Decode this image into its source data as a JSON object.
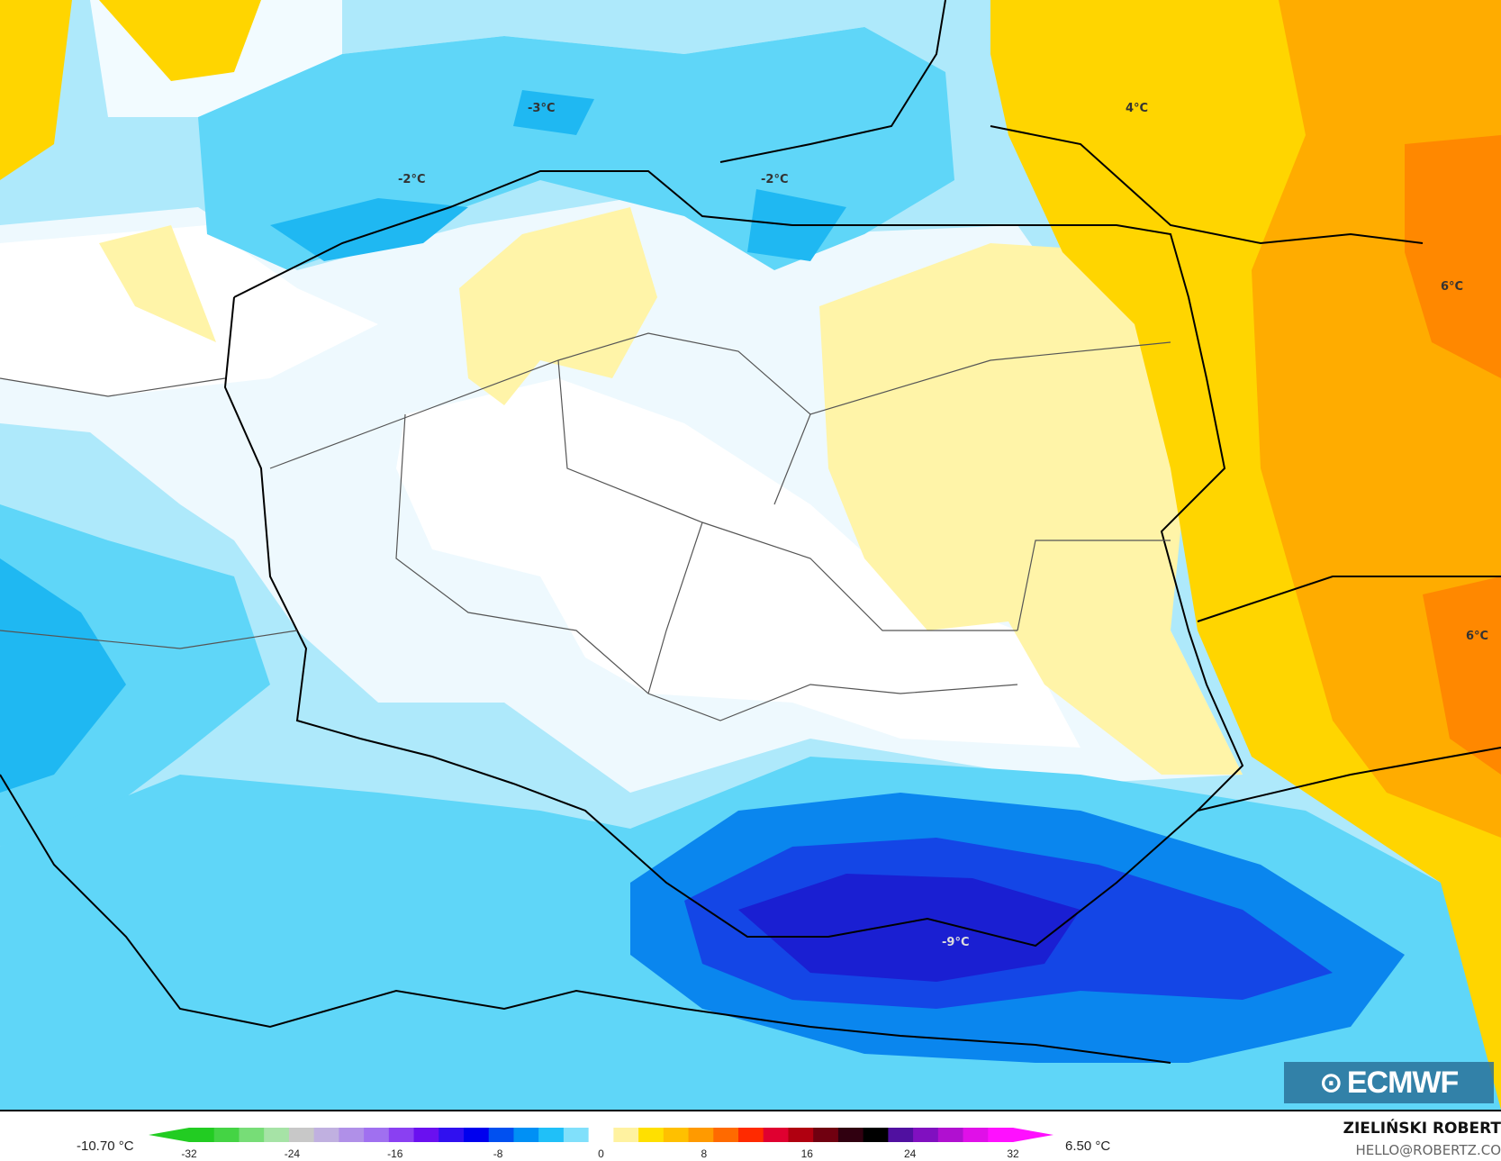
{
  "map": {
    "contour_labels": [
      {
        "text": "-3°C"
      },
      {
        "text": "-2°C"
      },
      {
        "text": "-2°C"
      },
      {
        "text": "4°C"
      },
      {
        "text": "6°C"
      },
      {
        "text": "6°C"
      },
      {
        "text": "-9°C"
      }
    ],
    "colors": {
      "pale_blue": "#e8f7fd",
      "light_blue": "#aee9fb",
      "cyan": "#5fd6f8",
      "mid_blue": "#1fb8f2",
      "blue": "#0a86ee",
      "deep_blue": "#1446e6",
      "darkest_blue": "#1a1fd2",
      "pale_yellow": "#fff4a8",
      "yellow": "#ffd500",
      "orange": "#ffac00",
      "dark_orange": "#ff8800"
    }
  },
  "logo": {
    "text": "ECMWF"
  },
  "legend": {
    "min_value": "-10.70 °C",
    "max_value": "6.50 °C",
    "ticks": [
      "-32",
      "-24",
      "-16",
      "-8",
      "0",
      "8",
      "16",
      "24",
      "32"
    ],
    "colors": [
      "#22cc22",
      "#44d444",
      "#77dd77",
      "#a6e3a6",
      "#c8c8c8",
      "#c0b0e0",
      "#b090e8",
      "#a070f0",
      "#8a40f2",
      "#6a10f0",
      "#3010f0",
      "#0000ee",
      "#0050f0",
      "#0090f5",
      "#20c0f8",
      "#80e0fb",
      "#ffffff",
      "#fff2a0",
      "#ffe000",
      "#ffc000",
      "#ff9a00",
      "#ff6a00",
      "#ff2a00",
      "#e00030",
      "#b00010",
      "#700010",
      "#300010",
      "#000000",
      "#5010a0",
      "#8010c0",
      "#b010d0",
      "#e010e8",
      "#ff10ff"
    ]
  },
  "credits": {
    "author": "ZIELIŃSKI ROBERT",
    "email": "HELLO@ROBERTZ.CO"
  }
}
